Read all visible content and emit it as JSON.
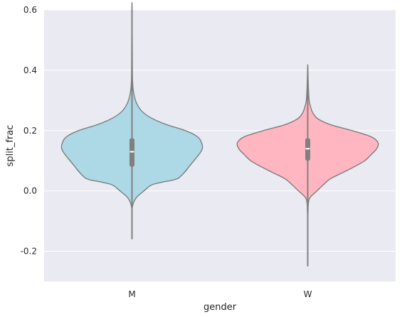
{
  "chart_data": {
    "type": "violin",
    "title": "",
    "xlabel": "gender",
    "ylabel": "split_frac",
    "categories": [
      "M",
      "W"
    ],
    "ylim": [
      -0.3,
      0.6
    ],
    "yticks": [
      -0.2,
      0.0,
      0.2,
      0.4,
      0.6
    ],
    "ytick_labels": [
      "-0.2",
      "0.0",
      "0.2",
      "0.4",
      "0.6"
    ],
    "grid": true,
    "colors": {
      "background": "#eaeaf2",
      "grid": "#ffffff",
      "outline": "#777777",
      "box": "#808080",
      "median": "#ffffff"
    },
    "violins": [
      {
        "category": "M",
        "color": "#add8e6",
        "min": -0.16,
        "max": 0.6,
        "q1": 0.08,
        "median": 0.13,
        "q3": 0.175,
        "density": [
          [
            -0.06,
            0.002
          ],
          [
            -0.04,
            0.02
          ],
          [
            -0.02,
            0.07
          ],
          [
            0.0,
            0.17
          ],
          [
            0.02,
            0.28
          ],
          [
            0.03,
            0.45
          ],
          [
            0.04,
            0.64
          ],
          [
            0.06,
            0.74
          ],
          [
            0.08,
            0.81
          ],
          [
            0.1,
            0.88
          ],
          [
            0.12,
            0.95
          ],
          [
            0.14,
            1.0
          ],
          [
            0.16,
            0.99
          ],
          [
            0.18,
            0.93
          ],
          [
            0.2,
            0.76
          ],
          [
            0.22,
            0.49
          ],
          [
            0.24,
            0.29
          ],
          [
            0.26,
            0.16
          ],
          [
            0.28,
            0.09
          ],
          [
            0.3,
            0.05
          ],
          [
            0.33,
            0.02
          ],
          [
            0.36,
            0.01
          ],
          [
            0.4,
            0.006
          ],
          [
            0.6,
            0.002
          ]
        ]
      },
      {
        "category": "W",
        "color": "#ffb6c1",
        "min": -0.25,
        "max": 0.41,
        "q1": 0.1,
        "median": 0.14,
        "q3": 0.175,
        "density": [
          [
            -0.1,
            0.002
          ],
          [
            -0.04,
            0.01
          ],
          [
            -0.02,
            0.04
          ],
          [
            0.0,
            0.13
          ],
          [
            0.02,
            0.22
          ],
          [
            0.04,
            0.32
          ],
          [
            0.06,
            0.49
          ],
          [
            0.08,
            0.66
          ],
          [
            0.1,
            0.81
          ],
          [
            0.12,
            0.9
          ],
          [
            0.14,
            0.98
          ],
          [
            0.16,
            1.0
          ],
          [
            0.18,
            0.9
          ],
          [
            0.2,
            0.63
          ],
          [
            0.22,
            0.32
          ],
          [
            0.24,
            0.14
          ],
          [
            0.26,
            0.07
          ],
          [
            0.28,
            0.04
          ],
          [
            0.3,
            0.02
          ],
          [
            0.34,
            0.01
          ],
          [
            0.41,
            0.002
          ]
        ]
      }
    ]
  }
}
